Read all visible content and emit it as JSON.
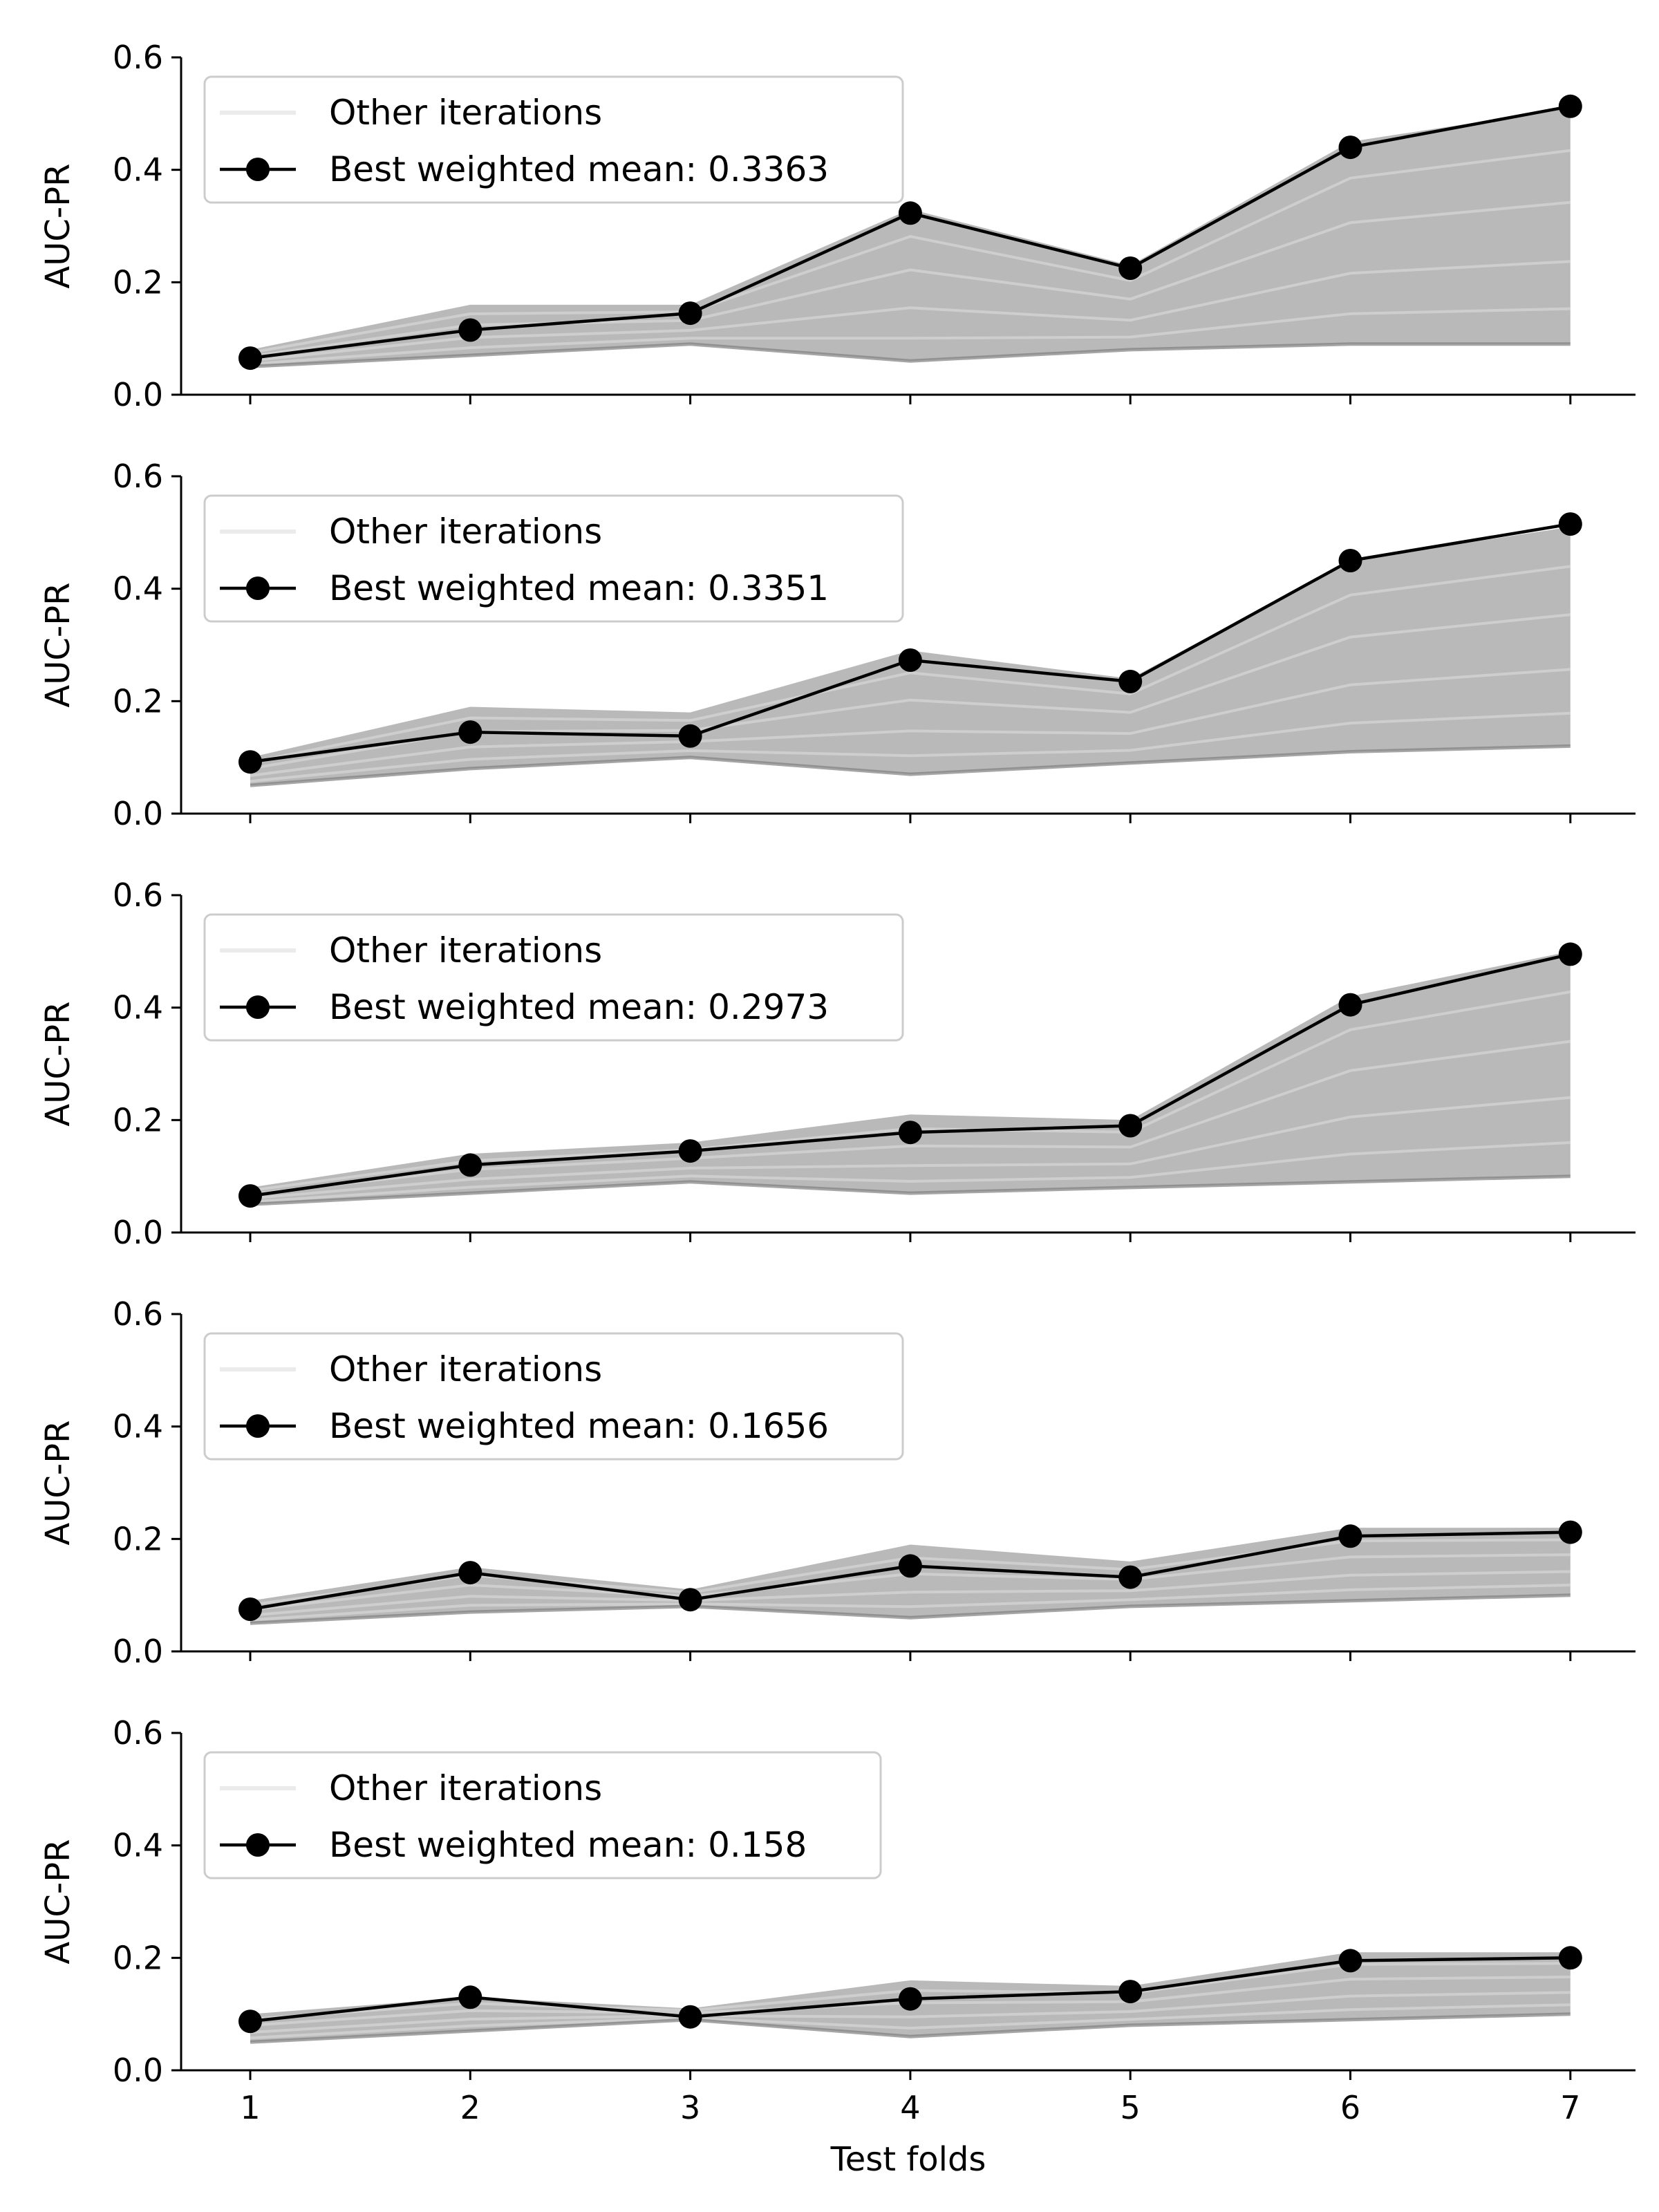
{
  "chart_data": [
    {
      "type": "line",
      "ylabel": "AUC-PR",
      "xlabel": "",
      "x": [
        1,
        2,
        3,
        4,
        5,
        6,
        7
      ],
      "ylim": [
        0,
        0.6
      ],
      "yticks": [
        "0.0",
        "0.2",
        "0.4",
        "0.6"
      ],
      "legend_position": "top-left",
      "series": [
        {
          "name": "Other iterations",
          "band_upper": [
            0.08,
            0.16,
            0.16,
            0.33,
            0.23,
            0.45,
            0.51
          ],
          "band_lower": [
            0.05,
            0.07,
            0.09,
            0.06,
            0.08,
            0.09,
            0.09
          ]
        },
        {
          "name": "Best weighted mean: 0.3363",
          "values": [
            0.065,
            0.115,
            0.145,
            0.323,
            0.225,
            0.44,
            0.513
          ]
        }
      ]
    },
    {
      "type": "line",
      "ylabel": "AUC-PR",
      "xlabel": "",
      "x": [
        1,
        2,
        3,
        4,
        5,
        6,
        7
      ],
      "ylim": [
        0,
        0.6
      ],
      "yticks": [
        "0.0",
        "0.2",
        "0.4",
        "0.6"
      ],
      "legend_position": "top-left",
      "series": [
        {
          "name": "Other iterations",
          "band_upper": [
            0.1,
            0.19,
            0.18,
            0.29,
            0.24,
            0.45,
            0.51
          ],
          "band_lower": [
            0.05,
            0.08,
            0.1,
            0.07,
            0.09,
            0.11,
            0.12
          ]
        },
        {
          "name": "Best weighted mean: 0.3351",
          "values": [
            0.092,
            0.145,
            0.138,
            0.273,
            0.235,
            0.45,
            0.515
          ]
        }
      ]
    },
    {
      "type": "line",
      "ylabel": "AUC-PR",
      "xlabel": "",
      "x": [
        1,
        2,
        3,
        4,
        5,
        6,
        7
      ],
      "ylim": [
        0,
        0.6
      ],
      "yticks": [
        "0.0",
        "0.2",
        "0.4",
        "0.6"
      ],
      "legend_position": "top-left",
      "series": [
        {
          "name": "Other iterations",
          "band_upper": [
            0.08,
            0.14,
            0.16,
            0.21,
            0.2,
            0.42,
            0.5
          ],
          "band_lower": [
            0.05,
            0.07,
            0.09,
            0.07,
            0.08,
            0.09,
            0.1
          ]
        },
        {
          "name": "Best weighted mean: 0.2973",
          "values": [
            0.065,
            0.12,
            0.145,
            0.178,
            0.19,
            0.405,
            0.495
          ]
        }
      ]
    },
    {
      "type": "line",
      "ylabel": "AUC-PR",
      "xlabel": "",
      "x": [
        1,
        2,
        3,
        4,
        5,
        6,
        7
      ],
      "ylim": [
        0,
        0.6
      ],
      "yticks": [
        "0.0",
        "0.2",
        "0.4",
        "0.6"
      ],
      "legend_position": "top-left",
      "series": [
        {
          "name": "Other iterations",
          "band_upper": [
            0.09,
            0.15,
            0.11,
            0.19,
            0.16,
            0.22,
            0.22
          ],
          "band_lower": [
            0.05,
            0.07,
            0.08,
            0.06,
            0.08,
            0.09,
            0.1
          ]
        },
        {
          "name": "Best weighted mean: 0.1656",
          "values": [
            0.075,
            0.14,
            0.092,
            0.152,
            0.132,
            0.205,
            0.212
          ]
        }
      ]
    },
    {
      "type": "line",
      "ylabel": "AUC-PR",
      "xlabel": "Test folds",
      "x": [
        1,
        2,
        3,
        4,
        5,
        6,
        7
      ],
      "ylim": [
        0,
        0.6
      ],
      "yticks": [
        "0.0",
        "0.2",
        "0.4",
        "0.6"
      ],
      "legend_position": "top-left",
      "series": [
        {
          "name": "Other iterations",
          "band_upper": [
            0.1,
            0.13,
            0.11,
            0.16,
            0.15,
            0.21,
            0.21
          ],
          "band_lower": [
            0.05,
            0.07,
            0.09,
            0.06,
            0.08,
            0.09,
            0.1
          ]
        },
        {
          "name": "Best weighted mean: 0.158",
          "values": [
            0.087,
            0.13,
            0.095,
            0.127,
            0.14,
            0.195,
            0.2
          ]
        }
      ]
    }
  ],
  "colors": {
    "best_line": "#000000",
    "other_band": "#808080",
    "other_light": "#d0d0d0",
    "legend_other_line": "#ebebeb"
  }
}
